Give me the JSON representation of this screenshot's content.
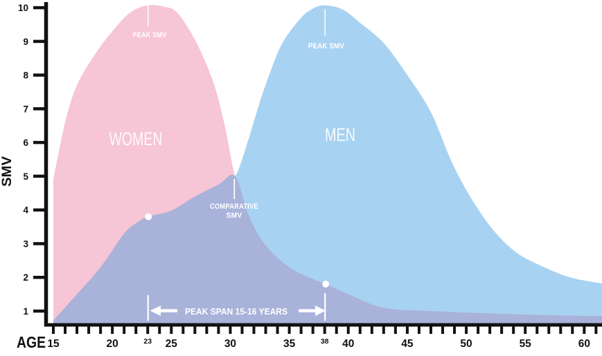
{
  "axes": {
    "x": {
      "title": "AGE",
      "major_ticks": [
        15,
        20,
        25,
        30,
        35,
        40,
        45,
        50,
        55,
        60
      ],
      "special_ticks": [
        23,
        38
      ],
      "minor_tick_step": 1,
      "min": 15,
      "max": 61
    },
    "y": {
      "title": "SMV",
      "ticks": [
        10,
        9,
        8,
        7,
        6,
        5,
        4,
        3,
        2,
        1
      ],
      "min": 1,
      "max": 10
    }
  },
  "labels": {
    "women_area": "WOMEN",
    "men_area": "MEN",
    "women_peak": "PEAK SMV",
    "men_peak": "PEAK SMV",
    "comparative_line1": "COMPARATIVE",
    "comparative_line2": "SMV",
    "peak_span": "PEAK SPAN 15-16 YEARS",
    "x_title": "AGE",
    "y_title": "SMV"
  },
  "colors": {
    "women": "#f6c5d6",
    "men": "#a8d2f1",
    "overlap": "#a9b2d9",
    "axis": "#111111",
    "annotation": "#ffffff"
  },
  "chart_data": {
    "type": "area",
    "title": "",
    "xlabel": "AGE",
    "ylabel": "SMV",
    "xlim": [
      15,
      61.5
    ],
    "ylim": [
      0.6,
      10.3
    ],
    "grid": false,
    "legend": "in-area text labels",
    "series": [
      {
        "name": "WOMEN",
        "color": "#f6c5d6",
        "peak_age": 23,
        "points": [
          [
            15,
            4.9
          ],
          [
            16,
            6.6
          ],
          [
            17,
            7.7
          ],
          [
            18.5,
            8.6
          ],
          [
            20,
            9.3
          ],
          [
            21.5,
            9.85
          ],
          [
            23,
            10.07
          ],
          [
            24.5,
            10.02
          ],
          [
            25.5,
            9.85
          ],
          [
            27,
            9.05
          ],
          [
            28.5,
            7.85
          ],
          [
            29.5,
            6.55
          ],
          [
            30.4,
            5.0
          ],
          [
            31.6,
            3.8
          ],
          [
            33,
            2.95
          ],
          [
            35,
            2.3
          ],
          [
            37,
            1.95
          ],
          [
            38,
            1.82
          ],
          [
            40,
            1.5
          ],
          [
            43,
            1.1
          ],
          [
            47,
            1.0
          ],
          [
            52,
            0.93
          ],
          [
            57,
            0.88
          ],
          [
            61.5,
            0.85
          ]
        ]
      },
      {
        "name": "MEN",
        "color": "#a8d2f1",
        "peak_age": 38,
        "points": [
          [
            15,
            0.72
          ],
          [
            17,
            1.5
          ],
          [
            19,
            2.3
          ],
          [
            21,
            3.3
          ],
          [
            22,
            3.6
          ],
          [
            23,
            3.8
          ],
          [
            25,
            3.98
          ],
          [
            27,
            4.4
          ],
          [
            29,
            4.75
          ],
          [
            30.4,
            5.0
          ],
          [
            31.5,
            6.05
          ],
          [
            32.5,
            7.2
          ],
          [
            33.5,
            8.2
          ],
          [
            34.5,
            9.0
          ],
          [
            36,
            9.7
          ],
          [
            37,
            9.97
          ],
          [
            38,
            10.07
          ],
          [
            39.5,
            9.95
          ],
          [
            41,
            9.55
          ],
          [
            43,
            8.95
          ],
          [
            45,
            8.0
          ],
          [
            47,
            6.9
          ],
          [
            48.8,
            5.4
          ],
          [
            50.5,
            4.3
          ],
          [
            52.3,
            3.4
          ],
          [
            54.2,
            2.75
          ],
          [
            56.3,
            2.35
          ],
          [
            58.8,
            2.0
          ],
          [
            61.5,
            1.82
          ]
        ]
      }
    ],
    "overlap_color": "#a9b2d9",
    "crossing": {
      "age": 30.4,
      "smv": 5.0,
      "label": "COMPARATIVE SMV"
    },
    "peaks": [
      {
        "series": "WOMEN",
        "age": 23,
        "smv": 10,
        "label": "PEAK SMV"
      },
      {
        "series": "MEN",
        "age": 38,
        "smv": 10,
        "label": "PEAK SMV"
      }
    ],
    "reference_dots": [
      {
        "on_series": "MEN",
        "age": 23,
        "smv": 3.8
      },
      {
        "on_series": "WOMEN",
        "age": 38,
        "smv": 1.8
      }
    ],
    "peak_span": {
      "from_age": 23,
      "to_age": 38,
      "label": "PEAK SPAN 15-16 YEARS"
    }
  }
}
